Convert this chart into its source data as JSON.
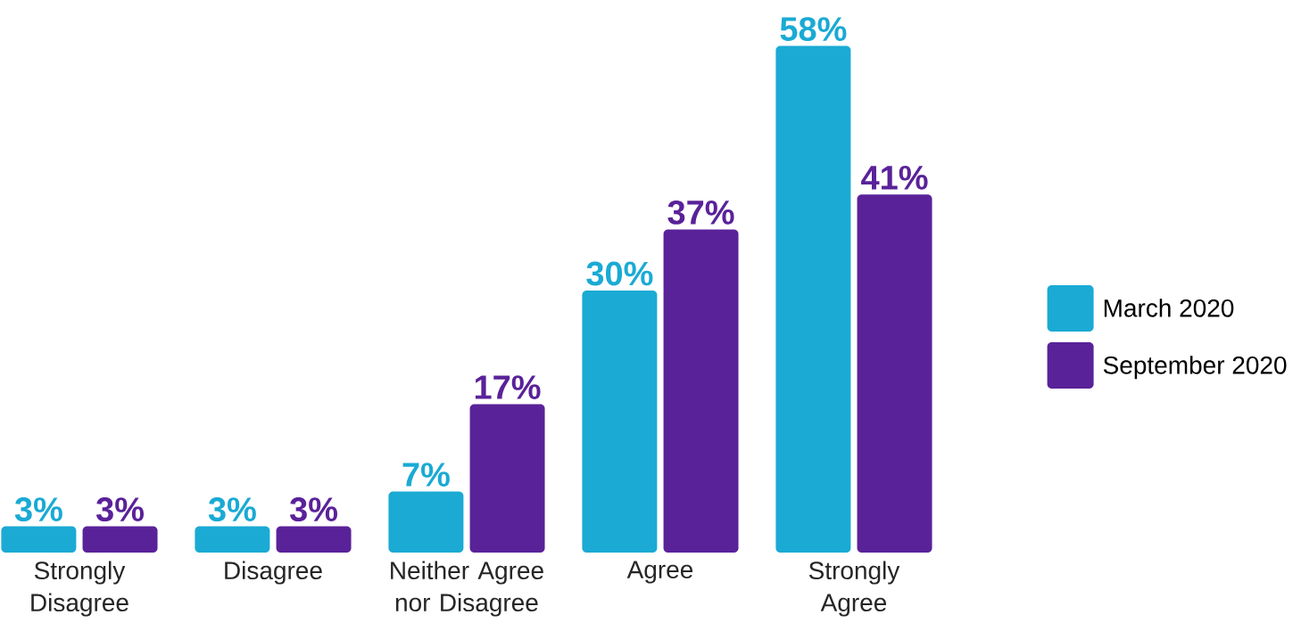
{
  "chart_data": {
    "type": "bar",
    "categories": [
      "Strongly Disagree",
      "Disagree",
      "Neither Agree nor Disagree",
      "Agree",
      "Strongly Agree"
    ],
    "series": [
      {
        "name": "March 2020",
        "color": "#1aaad4",
        "values": [
          3,
          3,
          7,
          30,
          58
        ],
        "value_labels": [
          "3%",
          "3%",
          "7%",
          "30%",
          "58%"
        ]
      },
      {
        "name": "September 2020",
        "color": "#5a2299",
        "values": [
          3,
          3,
          17,
          37,
          41
        ],
        "value_labels": [
          "3%",
          "3%",
          "17%",
          "37%",
          "41%"
        ]
      }
    ],
    "legend": "right"
  }
}
